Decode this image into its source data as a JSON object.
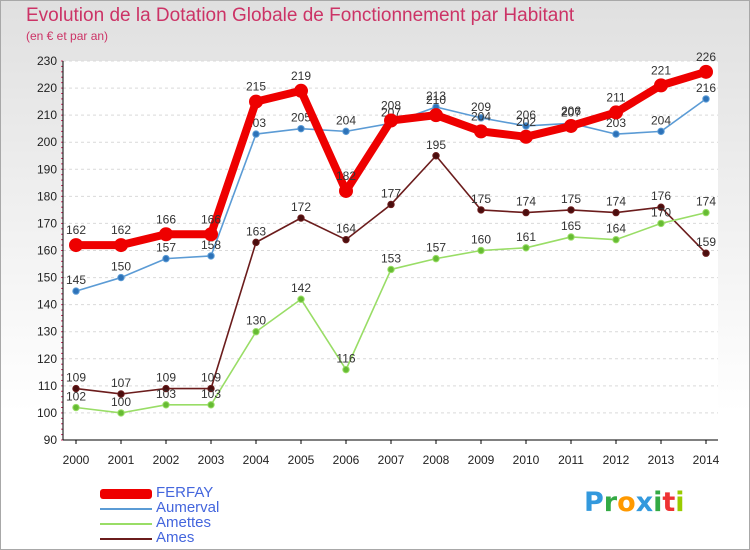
{
  "header": {
    "title": "Evolution de la Dotation Globale de Fonctionnement par Habitant",
    "subtitle": "(en € et par an)"
  },
  "logo": {
    "letters": [
      "P",
      "r",
      "o",
      "x",
      "i",
      "t",
      "i"
    ]
  },
  "colors": {
    "title": "#cc3366",
    "legend_text": "#4466dd",
    "FERFAY": "#ee0000",
    "Aumerval": "#5b9bd5",
    "Amettes": "#99dd66",
    "Ames": "#6b1c1c",
    "logo": [
      "#3399dd",
      "#33aa44",
      "#ff9900",
      "#3399dd",
      "#33aa44",
      "#ee3333",
      "#99cc00"
    ]
  },
  "chart_data": {
    "type": "line",
    "title": "Evolution de la Dotation Globale de Fonctionnement par Habitant",
    "subtitle": "(en € et par an)",
    "xlabel": "",
    "ylabel": "",
    "ylim": [
      90,
      230
    ],
    "yticks": [
      90,
      100,
      110,
      120,
      130,
      140,
      150,
      160,
      170,
      180,
      190,
      200,
      210,
      220,
      230
    ],
    "grid": "horizontal",
    "legend_position": "bottom-left",
    "categories": [
      "2000",
      "2001",
      "2002",
      "2003",
      "2004",
      "2005",
      "2006",
      "2007",
      "2008",
      "2009",
      "2010",
      "2011",
      "2012",
      "2013",
      "2014"
    ],
    "series": [
      {
        "name": "FERFAY",
        "values": [
          162,
          162,
          166,
          166,
          215,
          219,
          182,
          208,
          210,
          204,
          202,
          206,
          211,
          221,
          226
        ]
      },
      {
        "name": "Aumerval",
        "values": [
          145,
          150,
          157,
          158,
          203,
          205,
          204,
          207,
          213,
          209,
          206,
          207,
          203,
          204,
          216
        ]
      },
      {
        "name": "Amettes",
        "values": [
          102,
          100,
          103,
          103,
          130,
          142,
          116,
          153,
          157,
          160,
          161,
          165,
          164,
          170,
          174
        ]
      },
      {
        "name": "Ames",
        "values": [
          109,
          107,
          109,
          109,
          163,
          172,
          164,
          177,
          195,
          175,
          174,
          175,
          174,
          176,
          159
        ]
      }
    ]
  }
}
